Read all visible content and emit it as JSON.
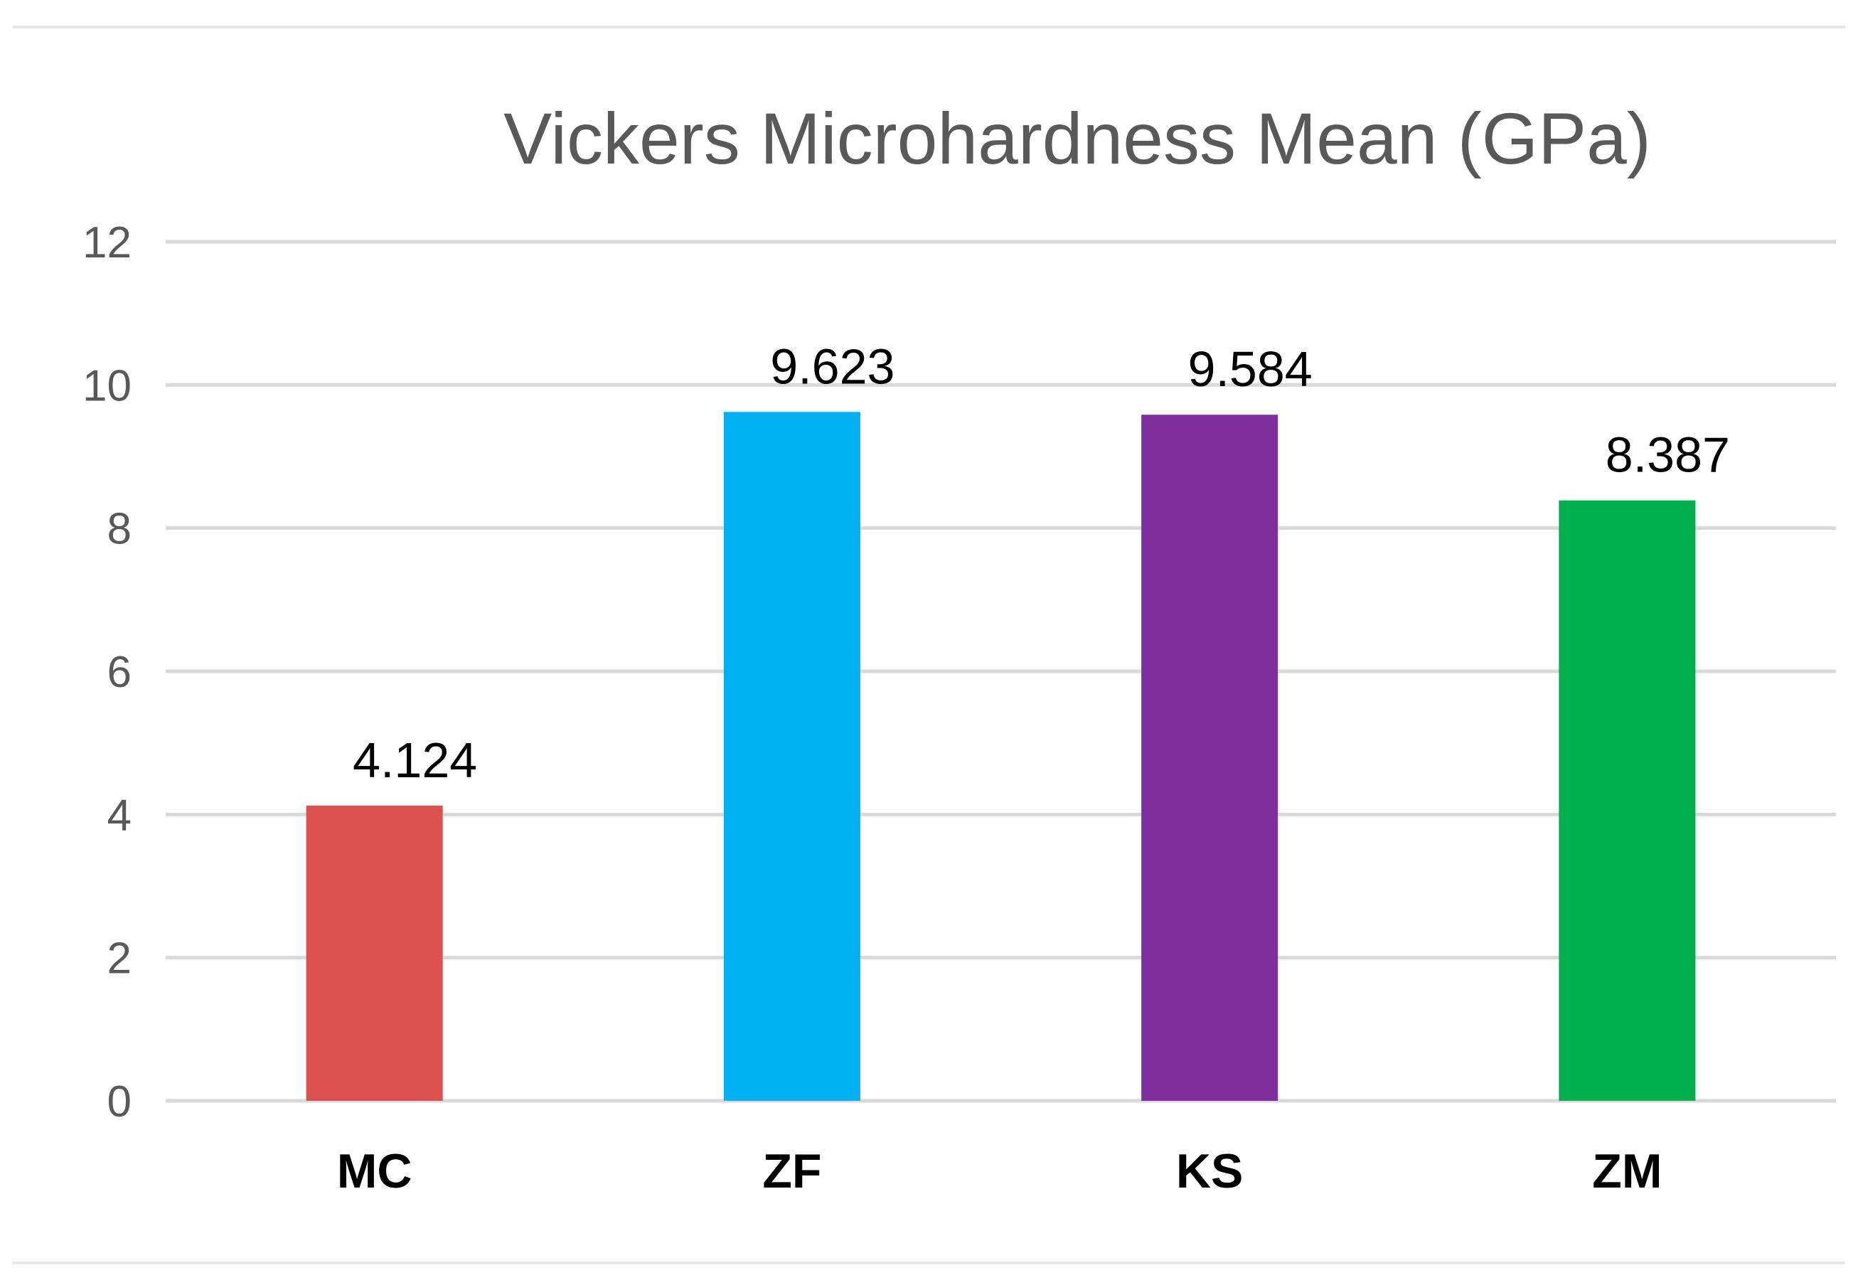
{
  "chart_data": {
    "type": "bar",
    "title": "Vickers Microhardness Mean (GPa)",
    "xlabel": "",
    "ylabel": "",
    "categories": [
      "MC",
      "ZF",
      "KS",
      "ZM"
    ],
    "values": [
      4.124,
      9.623,
      9.584,
      8.387
    ],
    "value_labels": [
      "4.124",
      "9.623",
      "9.584",
      "8.387"
    ],
    "bar_colors": [
      "#dc514f",
      "#00b0f0",
      "#7f2ea0",
      "#00b04f"
    ],
    "ylim": [
      0,
      12
    ],
    "yticks": [
      0,
      2,
      4,
      6,
      8,
      10,
      12
    ],
    "ytick_labels": [
      "0",
      "2",
      "4",
      "6",
      "8",
      "10",
      "12"
    ],
    "grid": true,
    "legend": "none"
  },
  "colors": {
    "gridline": "#d9d9d9",
    "frame_line": "#e6e6e6",
    "title": "#595959",
    "tick_label": "#595959"
  }
}
